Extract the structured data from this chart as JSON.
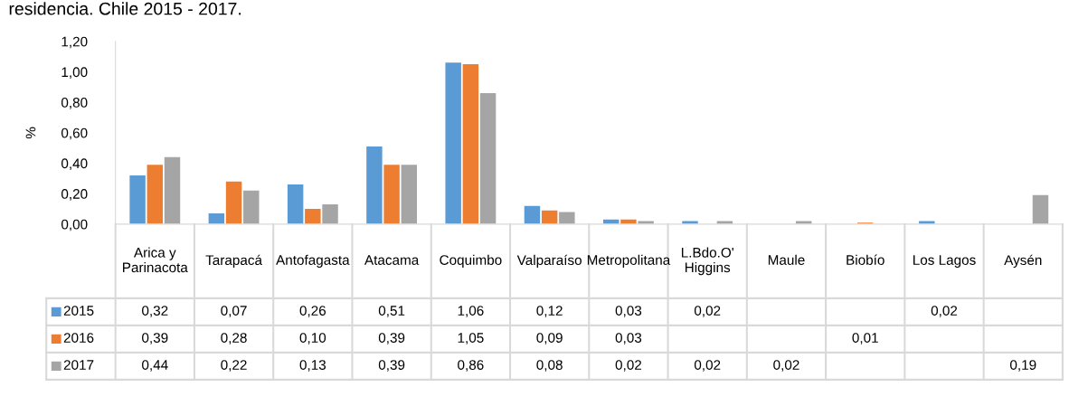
{
  "chart_data": {
    "type": "bar",
    "title": "residencia. Chile 2015 - 2017.",
    "ylabel": "%",
    "categories": [
      "Arica y Parinacota",
      "Tarapacá",
      "Antofagasta",
      "Atacama",
      "Coquimbo",
      "Valparaíso",
      "Metropolitana",
      "L.Bdo.O' Higgins",
      "Maule",
      "Biobío",
      "Los Lagos",
      "Aysén"
    ],
    "series": [
      {
        "name": "2015",
        "color": "#5b9bd5",
        "values": [
          0.32,
          0.07,
          0.26,
          0.51,
          1.06,
          0.12,
          0.03,
          0.02,
          null,
          null,
          0.02,
          null
        ],
        "value_labels": [
          "0,32",
          "0,07",
          "0,26",
          "0,51",
          "1,06",
          "0,12",
          "0,03",
          "0,02",
          null,
          null,
          "0,02",
          null
        ]
      },
      {
        "name": "2016",
        "color": "#ed7d31",
        "values": [
          0.39,
          0.28,
          0.1,
          0.39,
          1.05,
          0.09,
          0.03,
          null,
          null,
          0.01,
          null,
          null
        ],
        "value_labels": [
          "0,39",
          "0,28",
          "0,10",
          "0,39",
          "1,05",
          "0,09",
          "0,03",
          null,
          null,
          "0,01",
          null,
          null
        ]
      },
      {
        "name": "2017",
        "color": "#a5a5a5",
        "values": [
          0.44,
          0.22,
          0.13,
          0.39,
          0.86,
          0.08,
          0.02,
          0.02,
          0.02,
          null,
          null,
          0.19
        ],
        "value_labels": [
          "0,44",
          "0,22",
          "0,13",
          "0,39",
          "0,86",
          "0,08",
          "0,02",
          "0,02",
          "0,02",
          null,
          null,
          "0,19"
        ]
      }
    ],
    "ylim": [
      0,
      1.2
    ],
    "yticks": [
      {
        "value": 0,
        "label": "0,00"
      },
      {
        "value": 0.2,
        "label": "0,20"
      },
      {
        "value": 0.4,
        "label": "0,40"
      },
      {
        "value": 0.6,
        "label": "0,60"
      },
      {
        "value": 0.8,
        "label": "0,80"
      },
      {
        "value": 1.0,
        "label": "1,00"
      },
      {
        "value": 1.2,
        "label": "1,20"
      }
    ],
    "grid": false,
    "legend": "bottom left"
  }
}
